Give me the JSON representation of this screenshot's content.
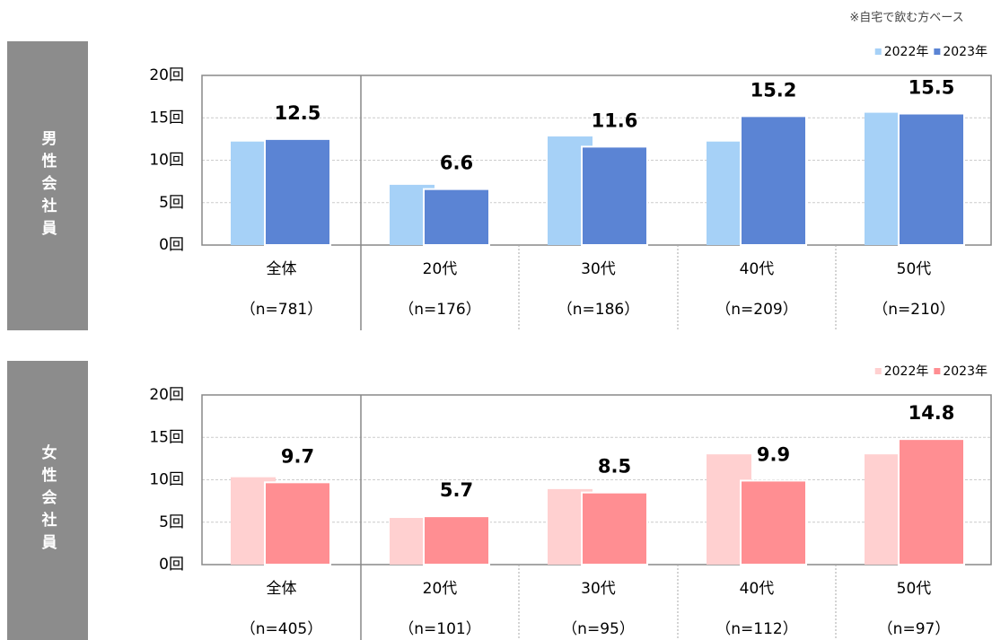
{
  "note": "※自宅で飲む方ベース",
  "chart_data": [
    {
      "type": "bar",
      "side_label": "男性会社員",
      "categories": [
        "全体",
        "20代",
        "30代",
        "40代",
        "50代"
      ],
      "sample_sizes": [
        "（n=781）",
        "（n=176）",
        "（n=186）",
        "（n=209）",
        "（n=210）"
      ],
      "series": [
        {
          "name": "2022年",
          "color": "#a6d1f7",
          "values": [
            12.2,
            7.1,
            12.8,
            12.2,
            15.6
          ]
        },
        {
          "name": "2023年",
          "color": "#5b84d4",
          "values": [
            12.5,
            6.6,
            11.6,
            15.2,
            15.5
          ]
        }
      ],
      "labeled_series": 1,
      "ylim": [
        0,
        20
      ],
      "yticks": [
        {
          "value": 0,
          "label": "0回"
        },
        {
          "value": 5,
          "label": "5回"
        },
        {
          "value": 10,
          "label": "10回"
        },
        {
          "value": 15,
          "label": "15回"
        },
        {
          "value": 20,
          "label": "20回"
        }
      ],
      "grid": true,
      "legend": "top-right"
    },
    {
      "type": "bar",
      "side_label": "女性会社員",
      "categories": [
        "全体",
        "20代",
        "30代",
        "40代",
        "50代"
      ],
      "sample_sizes": [
        "（n=405）",
        "（n=101）",
        "（n=95）",
        "（n=112）",
        "（n=97）"
      ],
      "series": [
        {
          "name": "2022年",
          "color": "#ffd0d0",
          "values": [
            10.3,
            5.5,
            8.9,
            13.0,
            13.0
          ]
        },
        {
          "name": "2023年",
          "color": "#ff8e92",
          "values": [
            9.7,
            5.7,
            8.5,
            9.9,
            14.8
          ]
        }
      ],
      "labeled_series": 1,
      "ylim": [
        0,
        20
      ],
      "yticks": [
        {
          "value": 0,
          "label": "0回"
        },
        {
          "value": 5,
          "label": "5回"
        },
        {
          "value": 10,
          "label": "10回"
        },
        {
          "value": 15,
          "label": "15回"
        },
        {
          "value": 20,
          "label": "20回"
        }
      ],
      "grid": true,
      "legend": "top-right"
    }
  ]
}
